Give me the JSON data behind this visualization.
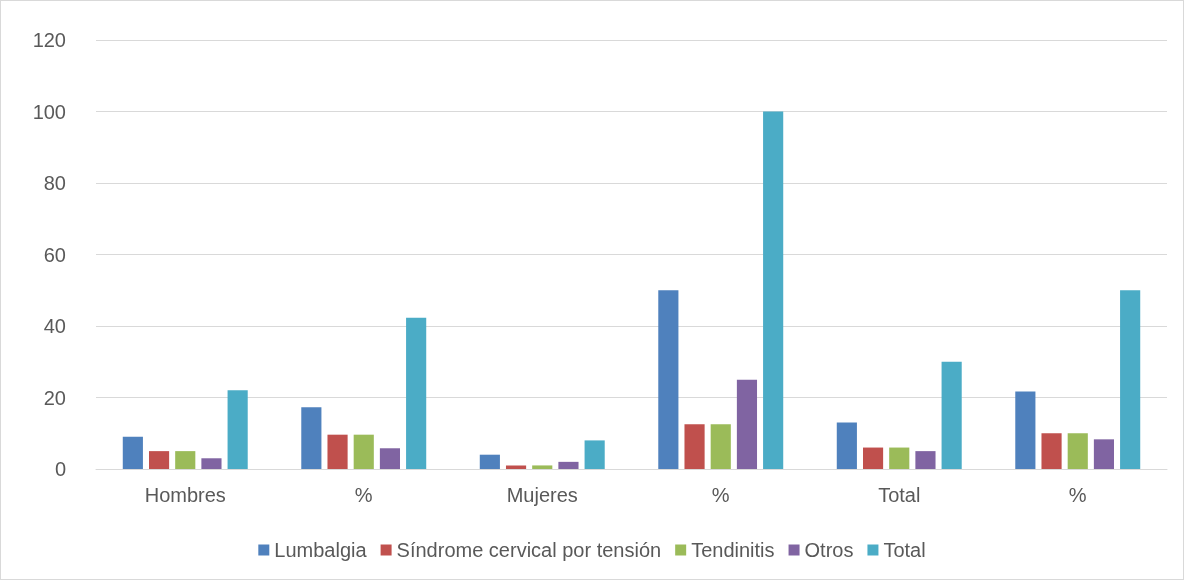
{
  "chart_data": {
    "type": "bar",
    "categories": [
      "Hombres",
      "%",
      "Mujeres",
      "%",
      "Total",
      "%"
    ],
    "series": [
      {
        "name": "Lumbalgia",
        "color": "#4f81bd",
        "values": [
          9,
          17.3,
          4,
          50,
          13,
          21.7
        ]
      },
      {
        "name": "Síndrome cervical por tensión",
        "color": "#c0504d",
        "values": [
          5,
          9.6,
          1,
          12.5,
          6,
          10
        ]
      },
      {
        "name": "Tendinitis",
        "color": "#9bbb59",
        "values": [
          5,
          9.6,
          1,
          12.5,
          6,
          10
        ]
      },
      {
        "name": "Otros",
        "color": "#8064a2",
        "values": [
          3,
          5.8,
          2,
          25,
          5,
          8.3
        ]
      },
      {
        "name": "Total",
        "color": "#4bacc6",
        "values": [
          22,
          42.3,
          8,
          100,
          30,
          50
        ]
      }
    ],
    "ylim": [
      0,
      120
    ],
    "yticks": [
      0,
      20,
      40,
      60,
      80,
      100,
      120
    ],
    "grid": "y",
    "legend": "bottom"
  }
}
